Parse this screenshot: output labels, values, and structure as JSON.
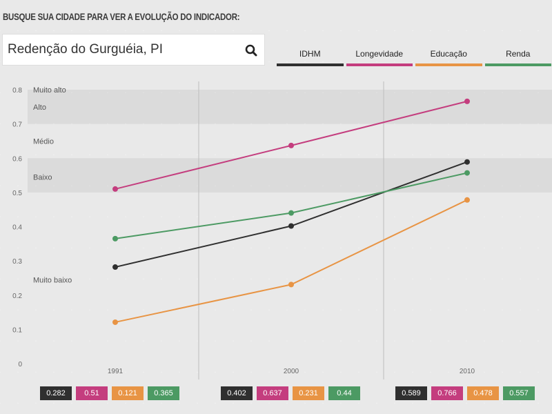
{
  "prompt": "BUSQUE SUA CIDADE PARA VER A EVOLUÇÃO DO INDICADOR:",
  "search": {
    "value": "Redenção do Gurguéia, PI",
    "icon": "search-icon"
  },
  "legend": [
    {
      "label": "IDHM",
      "color": "#2f2f2f"
    },
    {
      "label": "Longevidade",
      "color": "#c43d7e"
    },
    {
      "label": "Educação",
      "color": "#e89444"
    },
    {
      "label": "Renda",
      "color": "#4c9a63"
    }
  ],
  "chart_data": {
    "type": "line",
    "x": [
      "1991",
      "2000",
      "2010"
    ],
    "ylim": [
      0,
      0.8
    ],
    "yticks": [
      "0",
      "0.1",
      "0.2",
      "0.3",
      "0.4",
      "0.5",
      "0.6",
      "0.7",
      "0.8"
    ],
    "bands": [
      {
        "label": "Muito alto",
        "from": 0.8,
        "to": 1.0
      },
      {
        "label": "Alto",
        "from": 0.7,
        "to": 0.8
      },
      {
        "label": "Médio",
        "from": 0.6,
        "to": 0.7
      },
      {
        "label": "Baixo",
        "from": 0.5,
        "to": 0.6
      },
      {
        "label": "Muito baixo",
        "from": 0.0,
        "to": 0.5
      }
    ],
    "series": [
      {
        "name": "IDHM",
        "color": "#2f2f2f",
        "values": [
          0.282,
          0.402,
          0.589
        ],
        "labels": [
          "0.282",
          "0.402",
          "0.589"
        ]
      },
      {
        "name": "Longevidade",
        "color": "#c43d7e",
        "values": [
          0.51,
          0.637,
          0.766
        ],
        "labels": [
          "0.51",
          "0.637",
          "0.766"
        ]
      },
      {
        "name": "Educação",
        "color": "#e89444",
        "values": [
          0.121,
          0.231,
          0.478
        ],
        "labels": [
          "0.121",
          "0.231",
          "0.478"
        ]
      },
      {
        "name": "Renda",
        "color": "#4c9a63",
        "values": [
          0.365,
          0.44,
          0.557
        ],
        "labels": [
          "0.365",
          "0.44",
          "0.557"
        ]
      }
    ]
  }
}
